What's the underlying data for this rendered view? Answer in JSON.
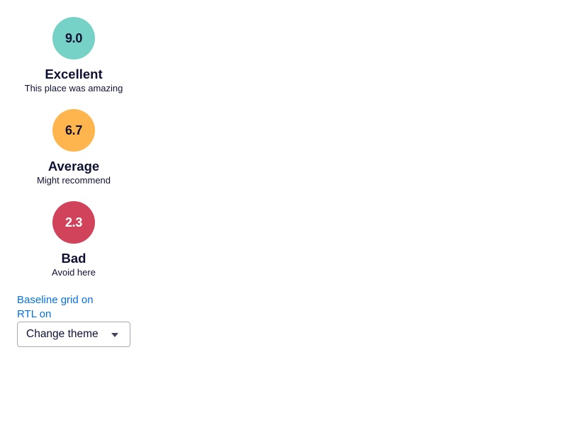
{
  "ratings": [
    {
      "score": "9.0",
      "title": "Excellent",
      "subtitle": "This place was amazing",
      "color": "#76d1c6",
      "text_color": "#0f1133"
    },
    {
      "score": "6.7",
      "title": "Average",
      "subtitle": "Might recommend",
      "color": "#ffb54d",
      "text_color": "#0f1133"
    },
    {
      "score": "2.3",
      "title": "Bad",
      "subtitle": "Avoid here",
      "color": "#d1435b",
      "text_color": "#ffffff"
    }
  ],
  "controls": {
    "baseline_grid_label": "Baseline grid on",
    "rtl_label": "RTL on",
    "theme_select": {
      "selected": "Change theme",
      "icon": "chevron-down-icon"
    }
  },
  "colors": {
    "link": "#0770e3",
    "text": "#0f1133"
  }
}
